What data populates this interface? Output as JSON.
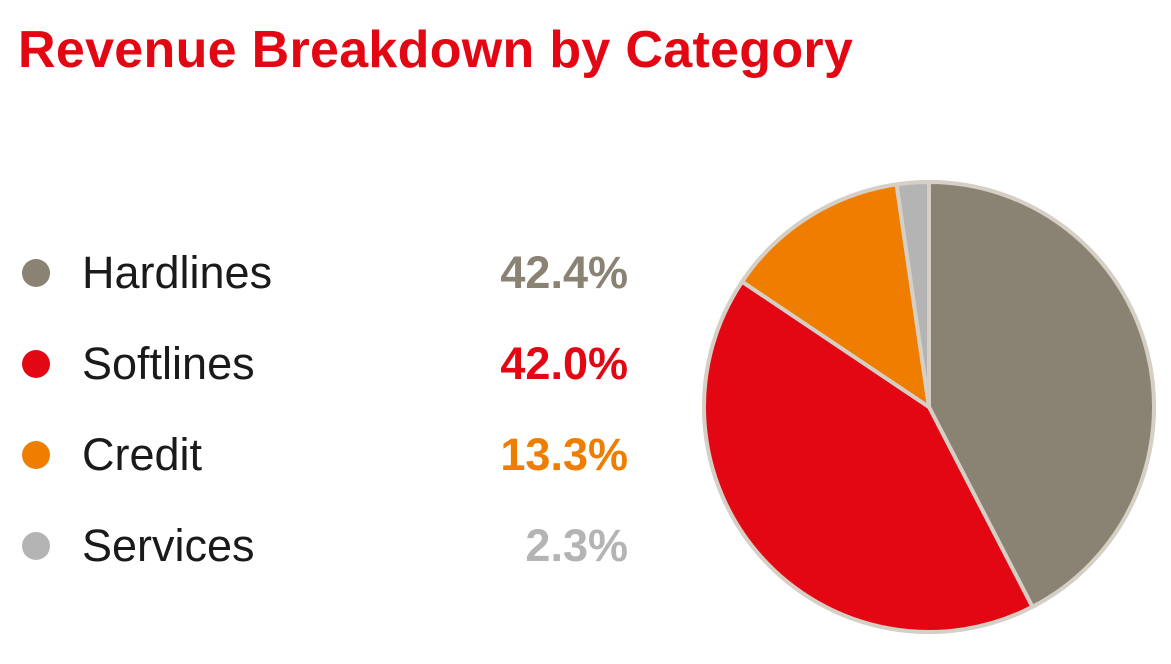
{
  "chart_data": {
    "type": "pie",
    "title": "Revenue Breakdown by Category",
    "slices": [
      {
        "label": "Hardlines",
        "value": 42.4,
        "display": "42.4%",
        "color": "#8a8272"
      },
      {
        "label": "Softlines",
        "value": 42.0,
        "display": "42.0%",
        "color": "#e30613"
      },
      {
        "label": "Credit",
        "value": 13.3,
        "display": "13.3%",
        "color": "#ef7d00"
      },
      {
        "label": "Services",
        "value": 2.3,
        "display": "2.3%",
        "color": "#b4b4b4"
      }
    ],
    "start_angle_deg": 0,
    "direction": "clockwise",
    "slice_border_color": "#d6cfc6",
    "legend_placement": "left"
  },
  "colors": {
    "title": "#e30613",
    "label_text": "#1a1a1a"
  }
}
